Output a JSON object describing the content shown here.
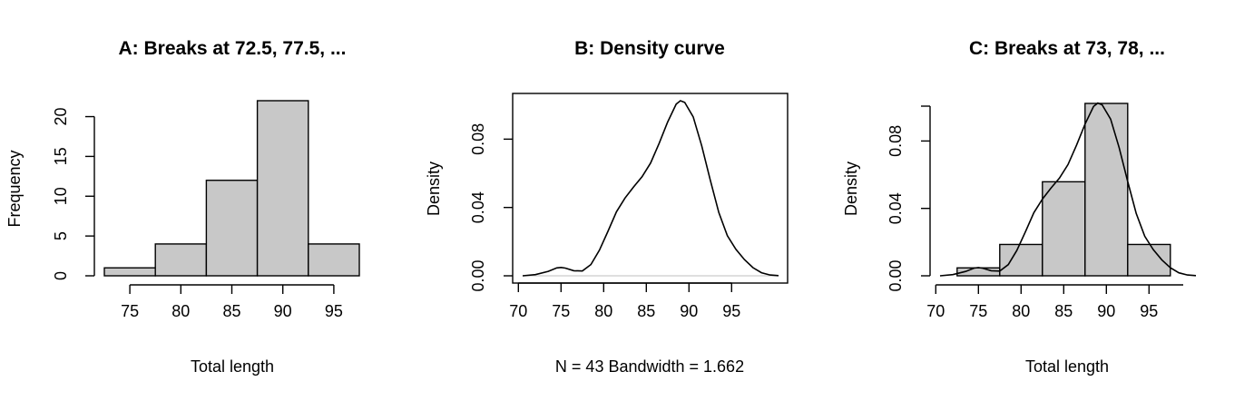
{
  "chart_data": [
    {
      "type": "bar",
      "title": "A: Breaks at 72.5, 77.5, ...",
      "xlabel": "Total length",
      "ylabel": "Frequency",
      "breaks": [
        72.5,
        77.5,
        82.5,
        87.5,
        92.5,
        97.5
      ],
      "values": [
        1,
        4,
        12,
        22,
        4
      ],
      "xticks": [
        75,
        80,
        85,
        90,
        95
      ],
      "xtick_labels": [
        "75",
        "80",
        "85",
        "90",
        "95"
      ],
      "yticks": [
        0,
        5,
        10,
        15,
        20
      ],
      "ytick_labels": [
        "0",
        "5",
        "10",
        "15",
        "20"
      ],
      "ylim": [
        0,
        22
      ]
    },
    {
      "type": "line",
      "title": "B: Density curve",
      "xlabel": "N = 43   Bandwidth = 1.662",
      "ylabel": "Density",
      "x": [
        70.5,
        72,
        73.5,
        74.5,
        75,
        75.5,
        76.5,
        77.5,
        78.5,
        79.5,
        80.5,
        81.5,
        82.5,
        83.5,
        84.5,
        85.5,
        86.5,
        87.5,
        88.5,
        89,
        89.5,
        90.5,
        91.5,
        92.5,
        93.5,
        94.5,
        95.5,
        96.5,
        97.5,
        98.5,
        99.5,
        100.5
      ],
      "y": [
        0.0,
        0.0007,
        0.0026,
        0.0046,
        0.0049,
        0.0045,
        0.003,
        0.0028,
        0.0066,
        0.015,
        0.026,
        0.0375,
        0.0455,
        0.052,
        0.058,
        0.066,
        0.0775,
        0.09,
        0.1005,
        0.1025,
        0.1015,
        0.093,
        0.076,
        0.056,
        0.037,
        0.0235,
        0.0155,
        0.0095,
        0.0048,
        0.0018,
        0.0005,
        0.0001
      ],
      "xticks": [
        70,
        75,
        80,
        85,
        90,
        95
      ],
      "xtick_labels": [
        "70",
        "75",
        "80",
        "85",
        "90",
        "95"
      ],
      "yticks": [
        0.0,
        0.04,
        0.08
      ],
      "ytick_labels": [
        "0.00",
        "0.04",
        "0.08"
      ],
      "xlim": [
        70.5,
        100.5
      ],
      "ylim": [
        0,
        0.1025
      ]
    },
    {
      "type": "bar",
      "title": "C: Breaks at 73, 78, ...",
      "xlabel": "Total length",
      "ylabel": "Density",
      "breaks": [
        72.5,
        77.5,
        82.5,
        87.5,
        92.5,
        97.5
      ],
      "values": [
        0.0047,
        0.0186,
        0.0558,
        0.1023,
        0.0186
      ],
      "xticks": [
        70,
        75,
        80,
        85,
        90,
        95
      ],
      "xtick_labels": [
        "70",
        "75",
        "80",
        "85",
        "90",
        "95"
      ],
      "yticks": [
        0.0,
        0.04,
        0.08
      ],
      "ytick_labels": [
        "0.00",
        "0.04",
        "0.08"
      ],
      "xlim": [
        70.5,
        100.5
      ],
      "ylim": [
        0,
        0.1023
      ],
      "overlay_curve": "density"
    }
  ]
}
